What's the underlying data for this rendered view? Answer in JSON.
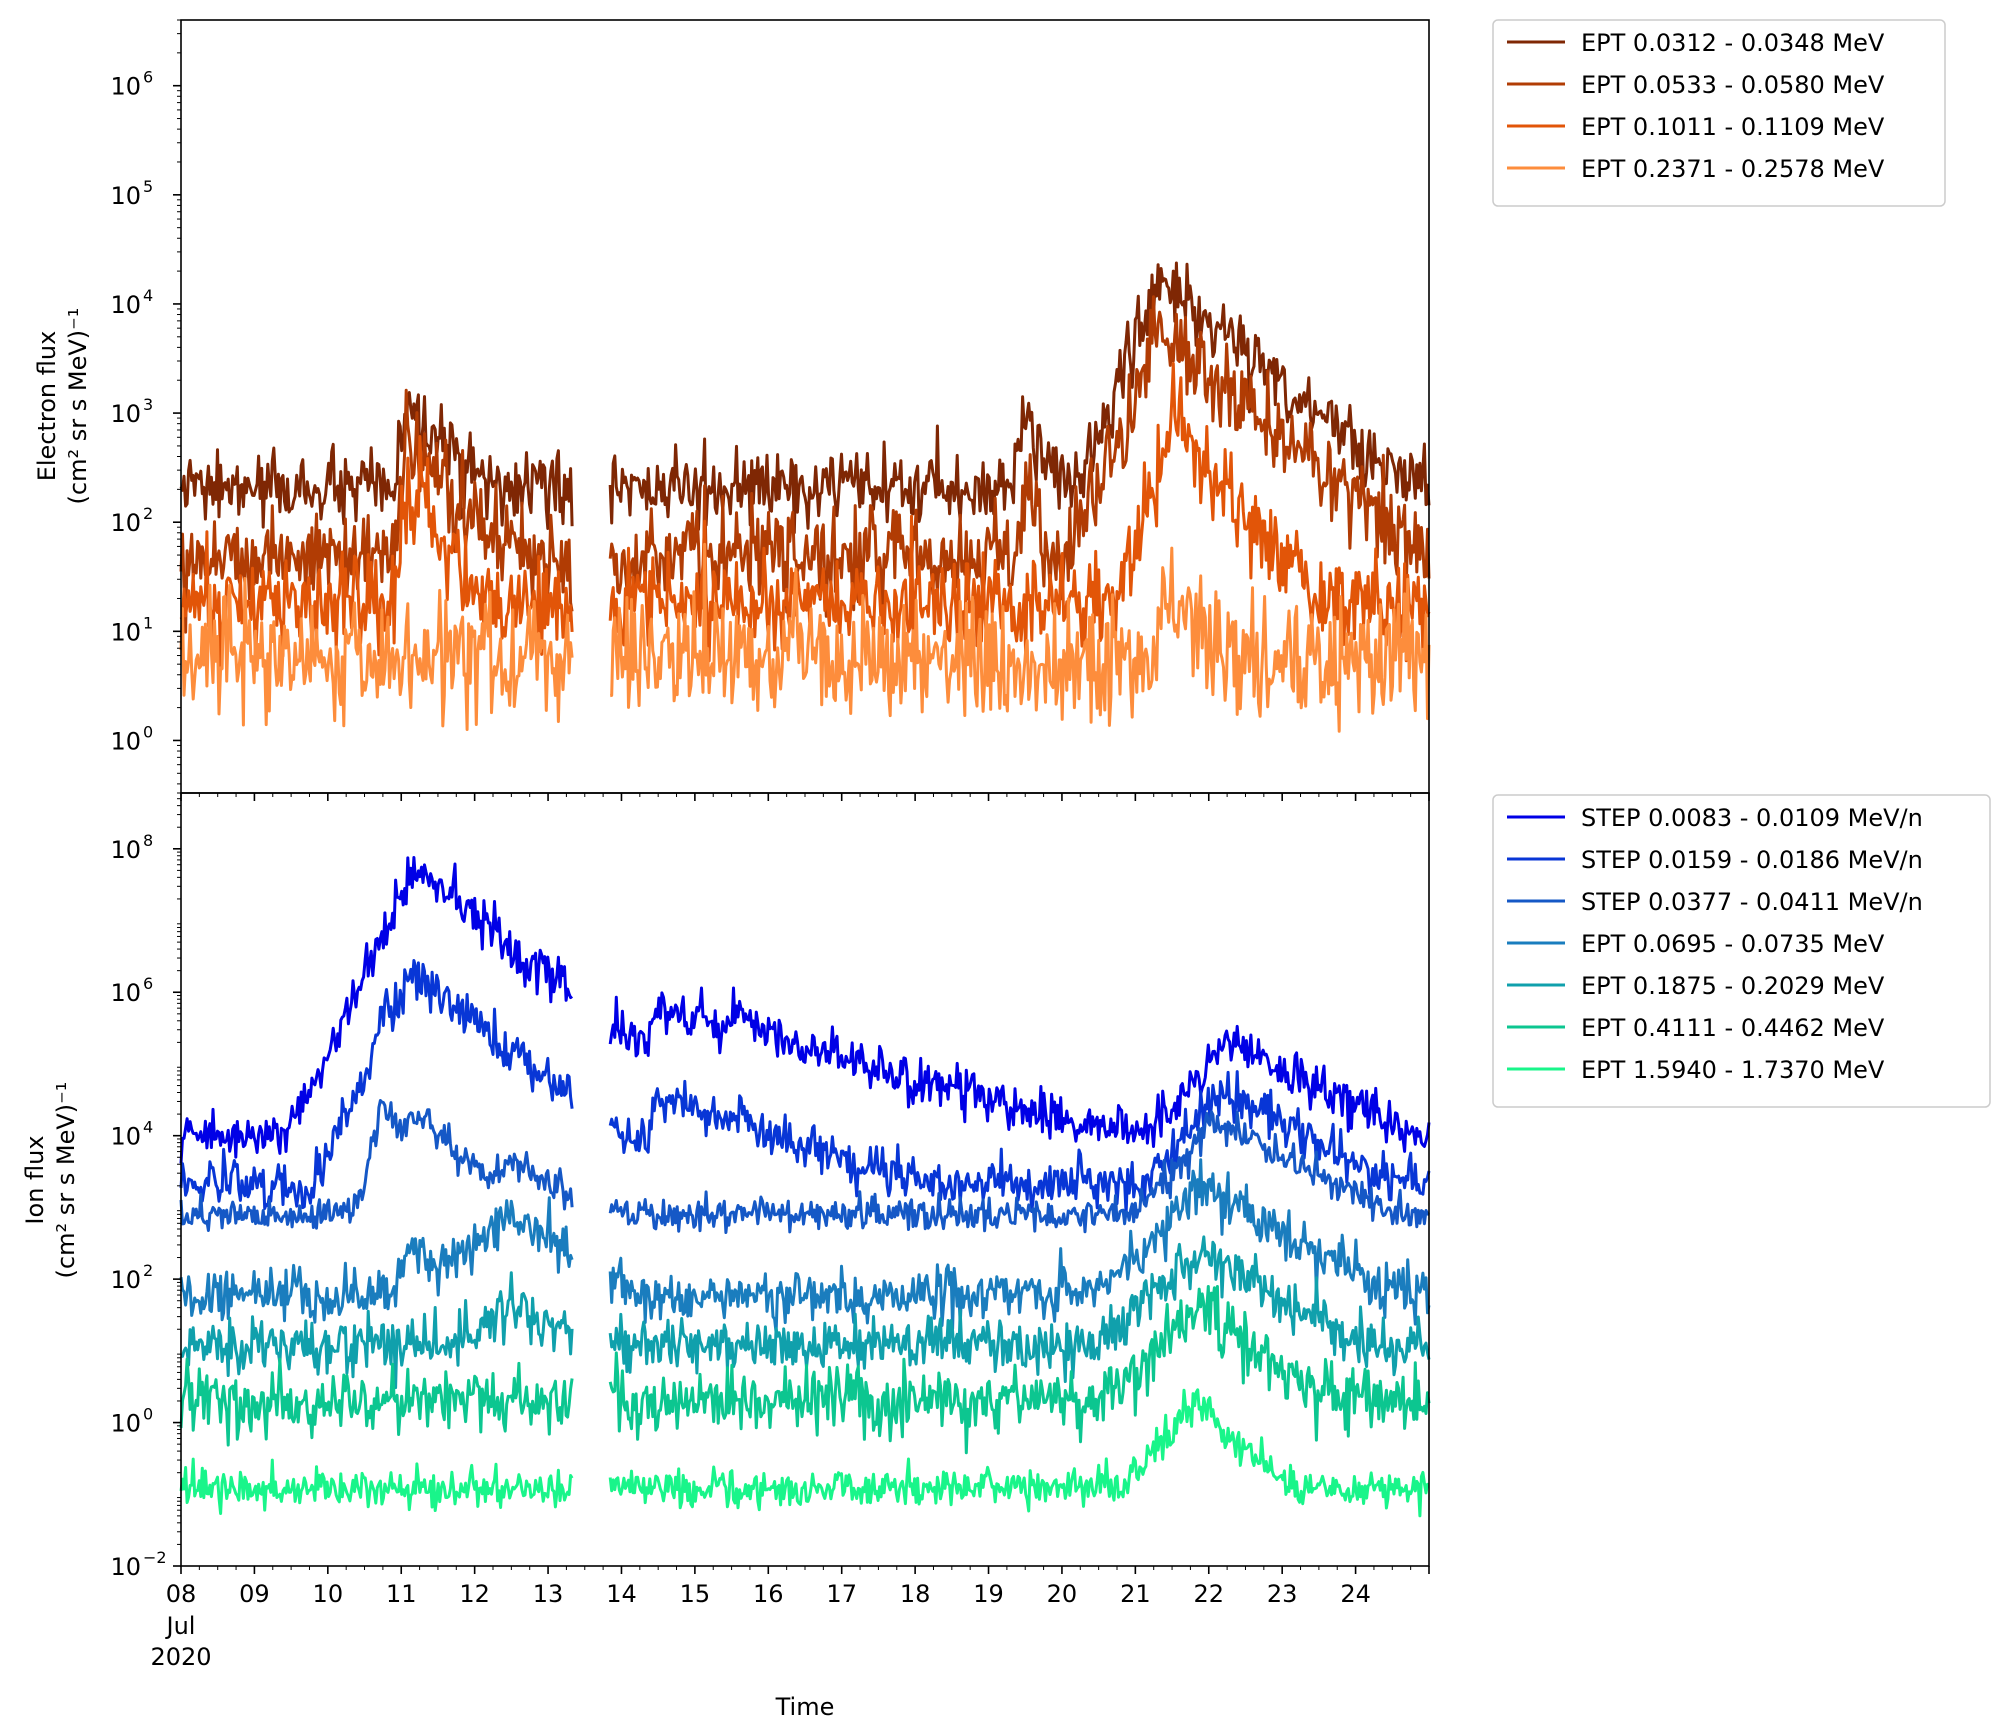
{
  "chart_data": [
    {
      "type": "line",
      "panel": "top",
      "ylabel_line1": "Electron flux",
      "ylabel_line2_html": "(cm² sr s MeV)⁻¹",
      "yscale": "log",
      "ylim": [
        0.33,
        4000000.0
      ],
      "xlim": [
        "2020-07-08",
        "2020-07-25"
      ],
      "yticks": [
        {
          "base": "10",
          "exp": "0",
          "value": 1
        },
        {
          "base": "10",
          "exp": "1",
          "value": 10
        },
        {
          "base": "10",
          "exp": "2",
          "value": 100
        },
        {
          "base": "10",
          "exp": "3",
          "value": 1000
        },
        {
          "base": "10",
          "exp": "4",
          "value": 10000
        },
        {
          "base": "10",
          "exp": "5",
          "value": 100000
        },
        {
          "base": "10",
          "exp": "6",
          "value": 1000000
        }
      ],
      "gap": [
        "2020-07-13 08:00",
        "2020-07-13 20:00"
      ],
      "series": [
        {
          "name": "EPT 0.0312 - 0.0348 MeV",
          "color": "#7f2704",
          "base": 200,
          "noise": 0.35,
          "events": [
            {
              "t": "2020-07-11 02:00",
              "peak": 1000,
              "rise": 0.08,
              "decay": 0.6
            },
            {
              "t": "2020-07-19 12:00",
              "peak": 1100,
              "rise": 0.1,
              "decay": 0.25
            },
            {
              "t": "2020-07-21 08:00",
              "peak": 17000,
              "rise": 0.25,
              "decay": 0.75
            },
            {
              "t": "2020-07-22 22:00",
              "peak": 2000,
              "rise": 0.02,
              "decay": 0.12
            }
          ]
        },
        {
          "name": "EPT 0.0533 - 0.0580 MeV",
          "color": "#b13c04",
          "base": 50,
          "noise": 0.45,
          "events": [
            {
              "t": "2020-07-11 02:00",
              "peak": 450,
              "rise": 0.08,
              "decay": 0.6
            },
            {
              "t": "2020-07-19 12:00",
              "peak": 150,
              "rise": 0.1,
              "decay": 0.25
            },
            {
              "t": "2020-07-21 08:00",
              "peak": 5500,
              "rise": 0.25,
              "decay": 0.75
            },
            {
              "t": "2020-07-22 22:00",
              "peak": 250,
              "rise": 0.02,
              "decay": 0.12
            }
          ]
        },
        {
          "name": "EPT 0.1011 - 0.1109 MeV",
          "color": "#e25508",
          "base": 18,
          "noise": 0.5,
          "events": [
            {
              "t": "2020-07-11 02:00",
              "peak": 180,
              "rise": 0.08,
              "decay": 0.5
            },
            {
              "t": "2020-07-21 12:00",
              "peak": 800,
              "rise": 0.2,
              "decay": 0.5
            }
          ]
        },
        {
          "name": "EPT 0.2371 - 0.2578 MeV",
          "color": "#fd8d3c",
          "base": 5.5,
          "noise": 0.6,
          "events": [
            {
              "t": "2020-07-21 12:00",
              "peak": 30,
              "rise": 0.15,
              "decay": 0.3
            }
          ]
        }
      ]
    },
    {
      "type": "line",
      "panel": "bottom",
      "ylabel_line1": "Ion flux",
      "ylabel_line2_html": "(cm² sr s MeV)⁻¹",
      "yscale": "log",
      "ylim": [
        0.01,
        600000000.0
      ],
      "xlim": [
        "2020-07-08",
        "2020-07-25"
      ],
      "xlabel": "Time",
      "xticks": [
        "08",
        "09",
        "10",
        "11",
        "12",
        "13",
        "14",
        "15",
        "16",
        "17",
        "18",
        "19",
        "20",
        "21",
        "22",
        "23",
        "24"
      ],
      "xtick_sub": [
        "Jul",
        "2020"
      ],
      "yticks": [
        {
          "base": "10",
          "exp": "−2",
          "value": 0.01
        },
        {
          "base": "10",
          "exp": "0",
          "value": 1
        },
        {
          "base": "10",
          "exp": "2",
          "value": 100
        },
        {
          "base": "10",
          "exp": "4",
          "value": 10000
        },
        {
          "base": "10",
          "exp": "6",
          "value": 1000000
        },
        {
          "base": "10",
          "exp": "8",
          "value": 100000000
        }
      ],
      "gap": [
        "2020-07-13 08:00",
        "2020-07-13 20:00"
      ],
      "series": [
        {
          "name": "STEP 0.0083 - 0.0109 MeV/n",
          "color": "#0000e6",
          "base": 10000,
          "noise": 0.35,
          "events": [
            {
              "t": "2020-07-10 18:00",
              "peak": 10000000.0,
              "rise": 0.1,
              "decay": 0.3
            },
            {
              "t": "2020-07-11 04:00",
              "peak": 50000000.0,
              "rise": 0.2,
              "decay": 0.55
            },
            {
              "t": "2020-07-14 12:00",
              "peak": 600000.0,
              "rise": 0.1,
              "decay": 1.5
            },
            {
              "t": "2020-07-15 14:00",
              "peak": 500000.0,
              "rise": 0.3,
              "decay": 0.8
            },
            {
              "t": "2020-07-16 12:00",
              "peak": 80000.0,
              "rise": 0.2,
              "decay": 0.4
            },
            {
              "t": "2020-07-18 16:00",
              "peak": 20000.0,
              "rise": 0.1,
              "decay": 0.25
            },
            {
              "t": "2020-07-22 06:00",
              "peak": 200000.0,
              "rise": 0.35,
              "decay": 0.8
            }
          ]
        },
        {
          "name": "STEP 0.0159 - 0.0186 MeV/n",
          "color": "#0836d6",
          "base": 2200,
          "noise": 0.35,
          "events": [
            {
              "t": "2020-07-10 18:00",
              "peak": 700000.0,
              "rise": 0.1,
              "decay": 0.3
            },
            {
              "t": "2020-07-11 04:00",
              "peak": 1800000.0,
              "rise": 0.2,
              "decay": 0.55
            },
            {
              "t": "2020-07-14 12:00",
              "peak": 35000.0,
              "rise": 0.1,
              "decay": 1.2
            },
            {
              "t": "2020-07-15 16:00",
              "peak": 18000.0,
              "rise": 0.3,
              "decay": 0.6
            },
            {
              "t": "2020-07-22 04:00",
              "peak": 50000.0,
              "rise": 0.3,
              "decay": 0.7
            }
          ]
        },
        {
          "name": "STEP 0.0377 - 0.0411 MeV/n",
          "color": "#1558c6",
          "base": 800,
          "noise": 0.25,
          "events": [
            {
              "t": "2020-07-10 18:00",
              "peak": 30000.0,
              "rise": 0.1,
              "decay": 0.3
            },
            {
              "t": "2020-07-11 04:00",
              "peak": 20000.0,
              "rise": 0.2,
              "decay": 0.5
            },
            {
              "t": "2020-07-12 12:00",
              "peak": 4500,
              "rise": 0.4,
              "decay": 0.6
            },
            {
              "t": "2020-07-22 02:00",
              "peak": 15000.0,
              "rise": 0.35,
              "decay": 0.8
            }
          ]
        },
        {
          "name": "EPT 0.0695 - 0.0735 MeV",
          "color": "#1a7dbe",
          "base": 60,
          "noise": 0.4,
          "events": [
            {
              "t": "2020-07-11 04:00",
              "peak": 250,
              "rise": 0.2,
              "decay": 0.4
            },
            {
              "t": "2020-07-12 12:00",
              "peak": 800,
              "rise": 0.5,
              "decay": 0.6
            },
            {
              "t": "2020-07-21 22:00",
              "peak": 2000,
              "rise": 0.4,
              "decay": 0.7
            }
          ]
        },
        {
          "name": "EPT 0.1875 - 0.2029 MeV",
          "color": "#10a0ac",
          "base": 12,
          "noise": 0.4,
          "events": [
            {
              "t": "2020-07-12 12:00",
              "peak": 45,
              "rise": 0.5,
              "decay": 0.6
            },
            {
              "t": "2020-07-21 20:00",
              "peak": 250,
              "rise": 0.4,
              "decay": 0.7
            }
          ]
        },
        {
          "name": "EPT 0.4111 - 0.4462 MeV",
          "color": "#0cc690",
          "base": 2,
          "noise": 0.5,
          "events": [
            {
              "t": "2020-07-21 20:00",
              "peak": 40,
              "rise": 0.4,
              "decay": 0.6
            }
          ]
        },
        {
          "name": "EPT 1.5940 - 1.7370 MeV",
          "color": "#19f58a",
          "base": 0.12,
          "noise": 0.3,
          "events": [
            {
              "t": "2020-07-21 20:00",
              "peak": 2.0,
              "rise": 0.35,
              "decay": 0.4
            }
          ]
        }
      ]
    }
  ]
}
